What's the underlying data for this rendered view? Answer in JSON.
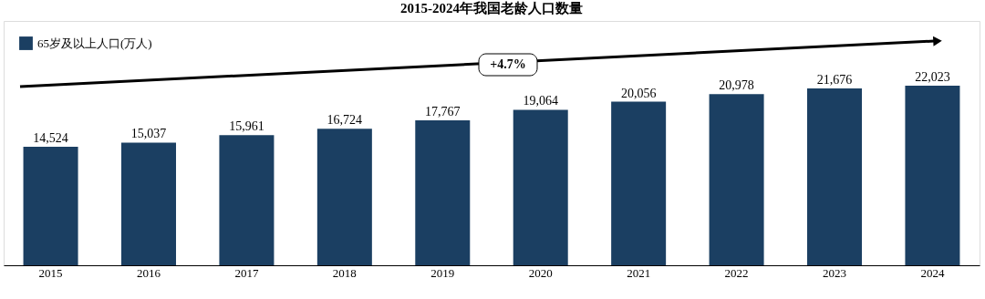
{
  "chart_data": {
    "type": "bar",
    "title": "2015-2024年我国老龄人口数量",
    "categories": [
      "2015",
      "2016",
      "2017",
      "2018",
      "2019",
      "2020",
      "2021",
      "2022",
      "2023",
      "2024"
    ],
    "series": [
      {
        "name": "65岁及以上人口(万人)",
        "color": "#1b3f62",
        "values": [
          14524,
          15037,
          15961,
          16724,
          17767,
          19064,
          20056,
          20978,
          21676,
          22023
        ],
        "value_labels": [
          "14,524",
          "15,037",
          "15,961",
          "16,724",
          "17,767",
          "19,064",
          "20,056",
          "20,978",
          "21,676",
          "22,023"
        ]
      }
    ],
    "legend": "top left",
    "grid": false,
    "annotations": [
      "+4.7%"
    ]
  }
}
